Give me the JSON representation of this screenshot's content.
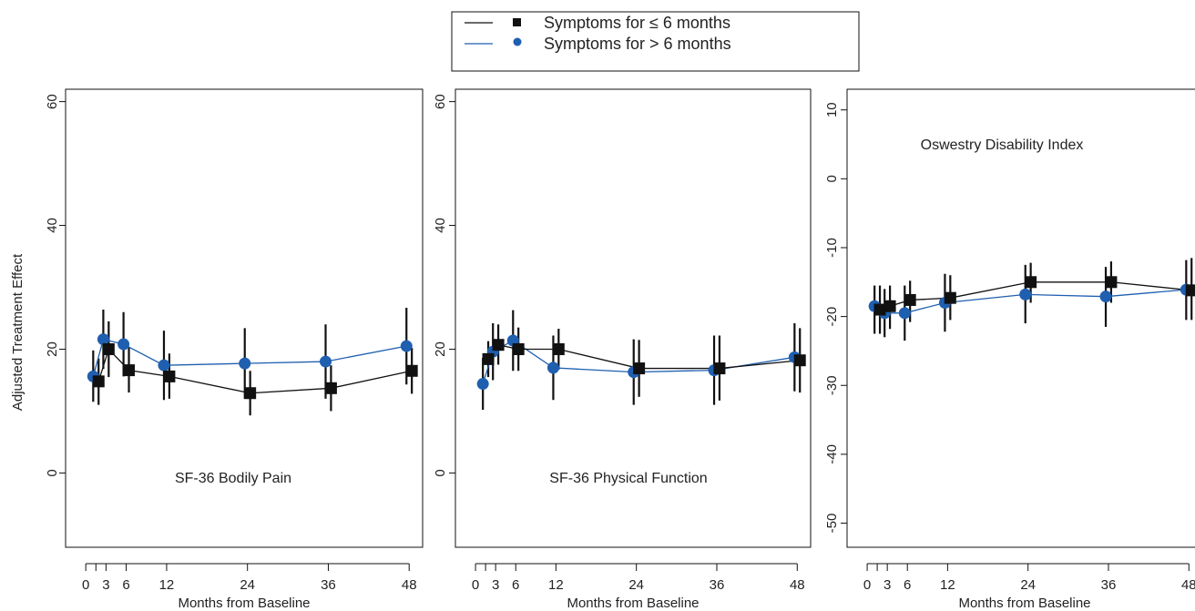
{
  "legend": {
    "entries": [
      {
        "label": "Symptoms for ≤ 6 months",
        "color": "#111111",
        "marker": "square"
      },
      {
        "label": "Symptoms for > 6 months",
        "color": "#1f5fb0",
        "marker": "circle"
      }
    ],
    "placement": "top-center"
  },
  "y_axis_label": "Adjusted Treatment Effect",
  "chart_data": [
    {
      "type": "line",
      "title": "SF-36 Bodily Pain",
      "xlabel": "Months from Baseline",
      "ylabel": "Adjusted Treatment Effect",
      "xlim": [
        -3,
        50
      ],
      "ylim": [
        -12,
        62
      ],
      "x_ticks": [
        0,
        1.5,
        3,
        6,
        12,
        24,
        36,
        48
      ],
      "x_tick_labels": [
        "0",
        "",
        "3",
        "6",
        "12",
        "24",
        "36",
        "48"
      ],
      "y_ticks": [
        0,
        20,
        40,
        60
      ],
      "y_tick_labels": [
        "0",
        "20",
        "40",
        "60"
      ],
      "grid": false,
      "series": [
        {
          "name": "Symptoms for ≤ 6 months",
          "x": [
            1.5,
            3,
            6,
            12,
            24,
            36,
            48
          ],
          "y": [
            14.8,
            20.0,
            16.6,
            15.6,
            12.9,
            13.7,
            16.5
          ],
          "ci_low": [
            11.0,
            15.5,
            13.0,
            12.0,
            9.3,
            10.0,
            12.8
          ],
          "ci_high": [
            18.5,
            24.5,
            20.3,
            19.3,
            16.5,
            17.4,
            20.2
          ]
        },
        {
          "name": "Symptoms for > 6 months",
          "x": [
            1.5,
            3,
            6,
            12,
            24,
            36,
            48
          ],
          "y": [
            15.6,
            21.6,
            20.8,
            17.4,
            17.7,
            18.0,
            20.5
          ],
          "ci_low": [
            11.5,
            16.8,
            15.6,
            11.8,
            12.0,
            12.0,
            14.3
          ],
          "ci_high": [
            19.8,
            26.4,
            26.0,
            23.0,
            23.4,
            24.0,
            26.7
          ]
        }
      ]
    },
    {
      "type": "line",
      "title": "SF-36 Physical Function",
      "xlabel": "Months from Baseline",
      "ylabel": "",
      "xlim": [
        -3,
        50
      ],
      "ylim": [
        -12,
        62
      ],
      "x_ticks": [
        0,
        1.5,
        3,
        6,
        12,
        24,
        36,
        48
      ],
      "x_tick_labels": [
        "0",
        "",
        "3",
        "6",
        "12",
        "24",
        "36",
        "48"
      ],
      "y_ticks": [
        0,
        20,
        40,
        60
      ],
      "y_tick_labels": [
        "0",
        "20",
        "40",
        "60"
      ],
      "grid": false,
      "series": [
        {
          "name": "Symptoms for ≤ 6 months",
          "x": [
            1.5,
            3,
            6,
            12,
            24,
            36,
            48
          ],
          "y": [
            18.4,
            20.7,
            20.0,
            20.0,
            16.9,
            16.9,
            18.2
          ],
          "ci_low": [
            15.5,
            17.5,
            16.5,
            16.7,
            12.3,
            11.7,
            13.0
          ],
          "ci_high": [
            21.3,
            24.0,
            23.5,
            23.3,
            21.5,
            22.2,
            23.4
          ]
        },
        {
          "name": "Symptoms for > 6 months",
          "x": [
            1.5,
            3,
            6,
            12,
            24,
            36,
            48
          ],
          "y": [
            14.4,
            19.6,
            21.4,
            17.0,
            16.3,
            16.6,
            18.7
          ],
          "ci_low": [
            10.2,
            15.0,
            16.5,
            11.8,
            11.0,
            11.0,
            13.2
          ],
          "ci_high": [
            18.6,
            24.2,
            26.3,
            22.2,
            21.6,
            22.2,
            24.2
          ]
        }
      ]
    },
    {
      "type": "line",
      "title": "Oswestry Disability Index",
      "xlabel": "Months from Baseline",
      "ylabel": "",
      "xlim": [
        -3,
        50
      ],
      "ylim": [
        -53.5,
        13
      ],
      "x_ticks": [
        0,
        1.5,
        3,
        6,
        12,
        24,
        36,
        48
      ],
      "x_tick_labels": [
        "0",
        "",
        "3",
        "6",
        "12",
        "24",
        "36",
        "48"
      ],
      "y_ticks": [
        -50,
        -40,
        -30,
        -20,
        -10,
        0,
        10
      ],
      "y_tick_labels": [
        "-50",
        "-40",
        "-30",
        "-20",
        "-10",
        "0",
        "10"
      ],
      "grid": false,
      "series": [
        {
          "name": "Symptoms for ≤ 6 months",
          "x": [
            1.5,
            3,
            6,
            12,
            24,
            36,
            48
          ],
          "y": [
            -19.0,
            -18.5,
            -17.6,
            -17.3,
            -15.0,
            -15.0,
            -16.2
          ],
          "ci_low": [
            -22.5,
            -21.8,
            -20.8,
            -20.5,
            -18.0,
            -18.0,
            -20.5
          ],
          "ci_high": [
            -15.5,
            -15.5,
            -14.8,
            -14.0,
            -12.2,
            -12.0,
            -11.5
          ]
        },
        {
          "name": "Symptoms for > 6 months",
          "x": [
            1.5,
            3,
            6,
            12,
            24,
            36,
            48
          ],
          "y": [
            -18.5,
            -19.5,
            -19.5,
            -18.0,
            -16.8,
            -17.1,
            -16.1
          ],
          "ci_low": [
            -22.5,
            -23.0,
            -23.5,
            -22.2,
            -21.0,
            -21.5,
            -20.5
          ],
          "ci_high": [
            -15.5,
            -16.0,
            -15.5,
            -13.8,
            -12.5,
            -12.8,
            -11.8
          ]
        }
      ]
    }
  ]
}
